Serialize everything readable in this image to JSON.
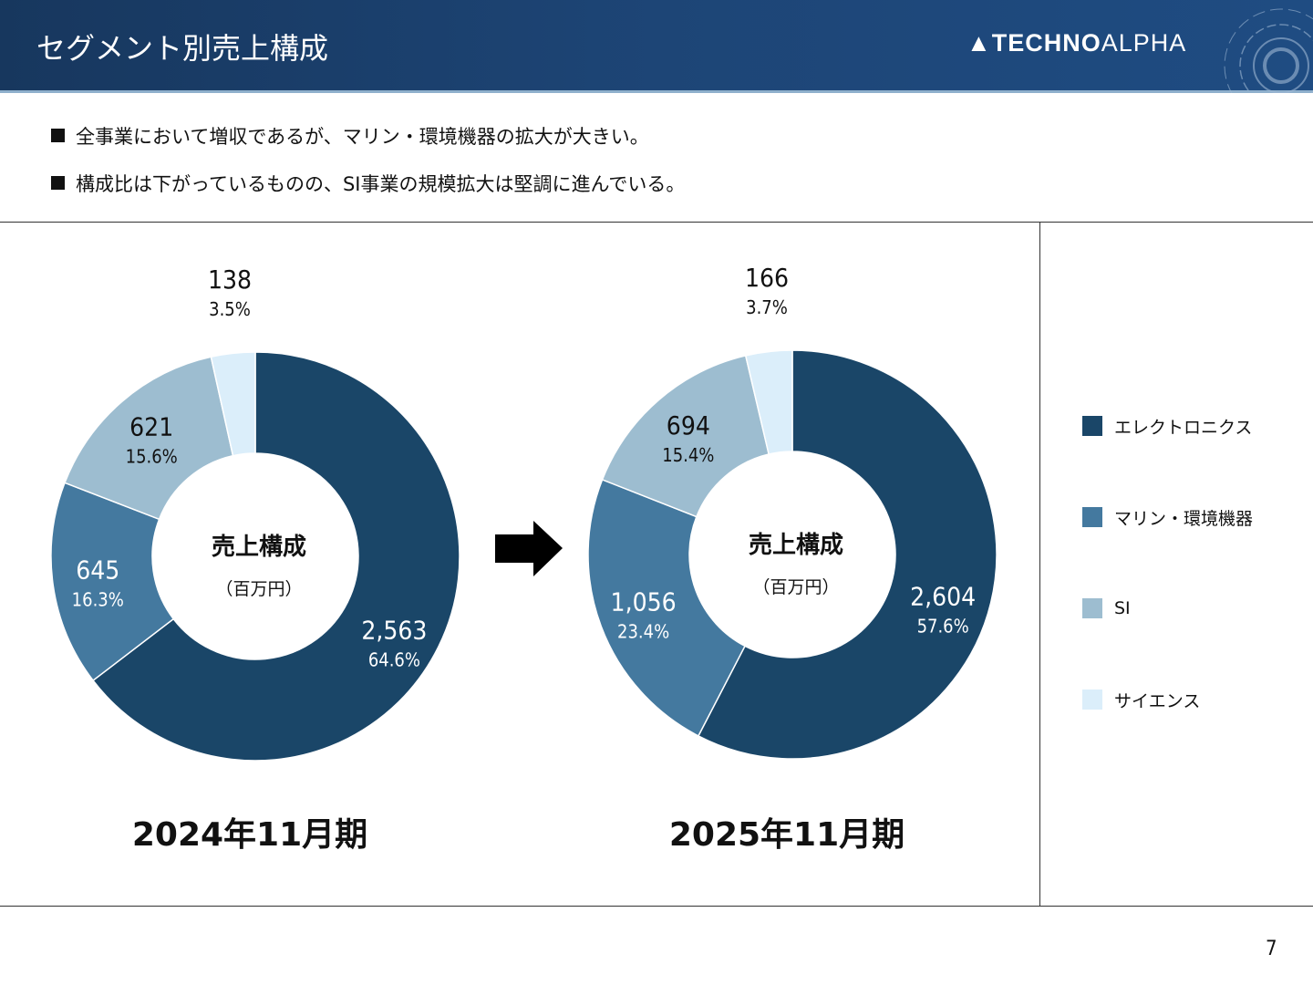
{
  "header": {
    "title": "セグメント別売上構成",
    "logo": "TECHNOALPHA"
  },
  "bullets": [
    "全事業において増収であるが、マリン・環境機器の拡大が大きい。",
    "構成比は下がっているものの、SI事業の規模拡大は堅調に進んでいる。"
  ],
  "page_number": "7",
  "chart_data": [
    {
      "type": "pie",
      "style": "donut",
      "title": "2024年11月期",
      "center_label": "売上構成",
      "center_sublabel": "（百万円）",
      "categories": [
        "エレクトロニクス",
        "マリン・環境機器",
        "SI",
        "サイエンス"
      ],
      "values": [
        2563,
        645,
        621,
        138
      ],
      "value_labels": [
        "2,563",
        "645",
        "621",
        "138"
      ],
      "percent_labels": [
        "64.6%",
        "16.3%",
        "15.6%",
        "3.5%"
      ]
    },
    {
      "type": "pie",
      "style": "donut",
      "title": "2025年11月期",
      "center_label": "売上構成",
      "center_sublabel": "（百万円）",
      "categories": [
        "エレクトロニクス",
        "マリン・環境機器",
        "SI",
        "サイエンス"
      ],
      "values": [
        2604,
        1056,
        694,
        166
      ],
      "value_labels": [
        "2,604",
        "1,056",
        "694",
        "166"
      ],
      "percent_labels": [
        "57.6%",
        "23.4%",
        "15.4%",
        "3.7%"
      ]
    }
  ],
  "legend": {
    "placement": "right",
    "items": [
      {
        "label": "エレクトロニクス",
        "color": "#1a4668"
      },
      {
        "label": "マリン・環境機器",
        "color": "#44799f"
      },
      {
        "label": "SI",
        "color": "#9dbdd0"
      },
      {
        "label": "サイエンス",
        "color": "#dbeefa"
      }
    ]
  }
}
